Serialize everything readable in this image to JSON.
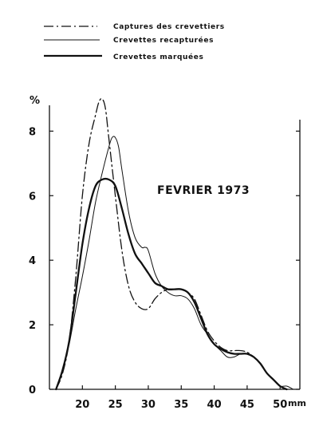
{
  "chart_data": {
    "type": "line",
    "title": "",
    "annotation": "FEVRIER 1973",
    "ylabel": "%",
    "xlabel": "mm",
    "xlim": [
      15,
      53
    ],
    "ylim": [
      0,
      8.8
    ],
    "x_ticks": [
      20,
      25,
      30,
      35,
      40,
      45,
      50
    ],
    "y_ticks": [
      0,
      2,
      4,
      6,
      8
    ],
    "grid": false,
    "legend_position": "top-left",
    "series": [
      {
        "name": "Captures des crevettiers",
        "style": "dashdot",
        "x": [
          16,
          17,
          18,
          19,
          20,
          21,
          22,
          22.5,
          23,
          23.5,
          24,
          25,
          26,
          27,
          28,
          29,
          30,
          31,
          32,
          33,
          34,
          35,
          36,
          37,
          38,
          39,
          40,
          41,
          42,
          43,
          44,
          45,
          46,
          47,
          48,
          49,
          50,
          51
        ],
        "y": [
          0,
          0.5,
          1.5,
          3.5,
          6.0,
          7.6,
          8.5,
          8.9,
          9.0,
          8.7,
          7.8,
          6.0,
          4.3,
          3.2,
          2.7,
          2.5,
          2.5,
          2.8,
          3.0,
          3.1,
          3.1,
          3.1,
          3.0,
          2.8,
          2.3,
          1.8,
          1.5,
          1.3,
          1.2,
          1.2,
          1.2,
          1.15,
          1.0,
          0.8,
          0.5,
          0.3,
          0.1,
          0
        ]
      },
      {
        "name": "Crevettes recapturées",
        "style": "thin",
        "x": [
          16,
          17,
          18,
          19,
          20,
          21,
          22,
          23,
          24,
          24.5,
          25,
          25.5,
          26,
          27,
          28,
          29,
          29.5,
          30,
          31,
          32,
          33,
          34,
          35,
          36,
          37,
          38,
          39,
          40,
          41,
          42,
          43,
          44,
          45,
          46,
          47,
          48,
          49,
          50,
          51,
          52
        ],
        "y": [
          0,
          0.6,
          1.4,
          2.5,
          3.5,
          4.6,
          5.8,
          6.7,
          7.5,
          7.8,
          7.8,
          7.5,
          6.8,
          5.5,
          4.7,
          4.4,
          4.4,
          4.3,
          3.6,
          3.2,
          3.0,
          2.9,
          2.9,
          2.8,
          2.5,
          2.0,
          1.7,
          1.4,
          1.2,
          1.0,
          1.0,
          1.1,
          1.1,
          1.0,
          0.8,
          0.5,
          0.3,
          0.1,
          0.1,
          0
        ]
      },
      {
        "name": "Crevettes marquées",
        "style": "thick",
        "x": [
          16,
          17,
          18,
          19,
          20,
          21,
          22,
          23,
          24,
          25,
          26,
          27,
          28,
          29,
          30,
          31,
          32,
          33,
          34,
          35,
          36,
          37,
          38,
          39,
          40,
          41,
          42,
          43,
          44,
          45,
          46,
          47,
          48,
          49,
          50,
          51
        ],
        "y": [
          0,
          0.6,
          1.5,
          3.0,
          4.5,
          5.6,
          6.3,
          6.5,
          6.5,
          6.3,
          5.6,
          4.8,
          4.2,
          3.9,
          3.6,
          3.3,
          3.2,
          3.1,
          3.1,
          3.1,
          3.0,
          2.7,
          2.2,
          1.7,
          1.4,
          1.25,
          1.15,
          1.1,
          1.1,
          1.1,
          1.0,
          0.8,
          0.5,
          0.3,
          0.1,
          0
        ]
      }
    ]
  }
}
